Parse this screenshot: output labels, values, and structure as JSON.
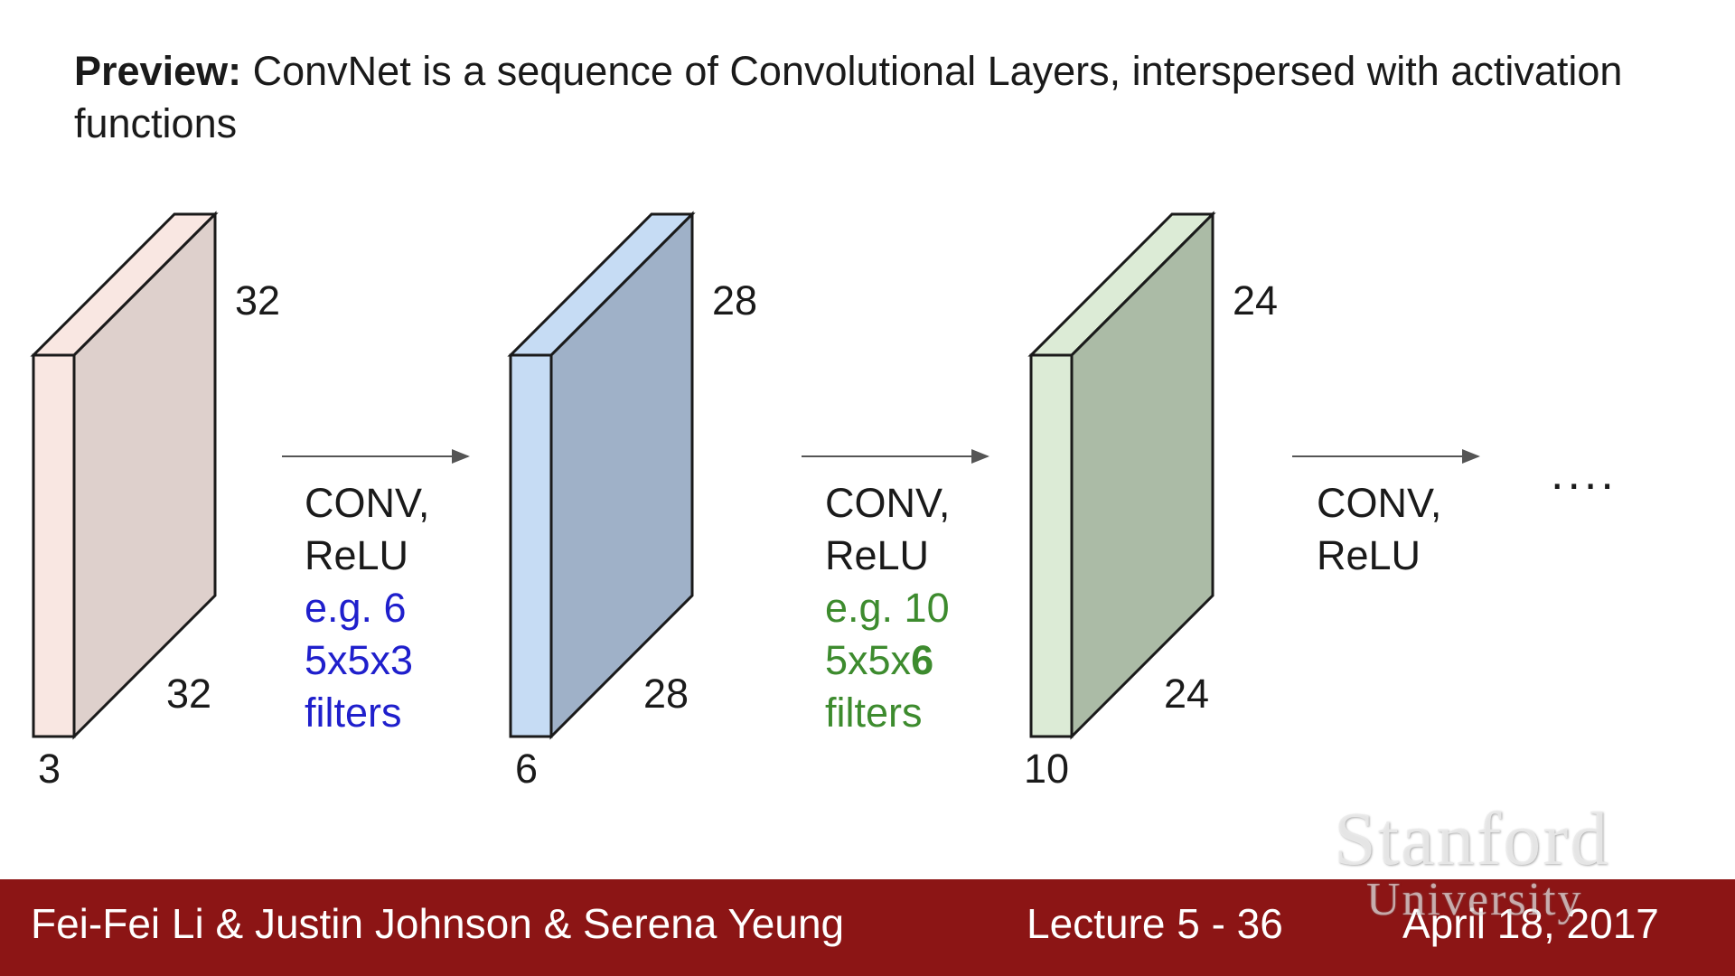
{
  "title": {
    "bold": "Preview:",
    "text": " ConvNet is a sequence of Convolutional Layers, interspersed with activation functions"
  },
  "volumes": [
    {
      "height_label": "32",
      "width_label": "32",
      "depth_label": "3",
      "front_color": "#f9e7e2",
      "side_color": "#ded0cc"
    },
    {
      "height_label": "28",
      "width_label": "28",
      "depth_label": "6",
      "front_color": "#c6dcf4",
      "side_color": "#9fb1c8"
    },
    {
      "height_label": "24",
      "width_label": "24",
      "depth_label": "10",
      "front_color": "#dcebd6",
      "side_color": "#abbba6"
    }
  ],
  "operations": [
    {
      "line1": "CONV,",
      "line2": "ReLU",
      "note1": "e.g. 6",
      "note2": "5x5x3",
      "note3": "filters",
      "note_color": "#1f1fcc"
    },
    {
      "line1": "CONV,",
      "line2": "ReLU",
      "note1": "e.g. 10",
      "note2_prefix": "5x5x",
      "note2_bold": "6",
      "note3": "filters",
      "note_color": "#3d8b2e"
    },
    {
      "line1": "CONV,",
      "line2": "ReLU"
    }
  ],
  "ellipsis": "....",
  "footer": {
    "authors": "Fei-Fei Li & Justin Johnson & Serena Yeung",
    "lecture": "Lecture 5 - 36",
    "date": "April 18, 2017",
    "bg_color": "#8c1515"
  },
  "watermark": {
    "line1": "Stanford",
    "line2": "University"
  }
}
